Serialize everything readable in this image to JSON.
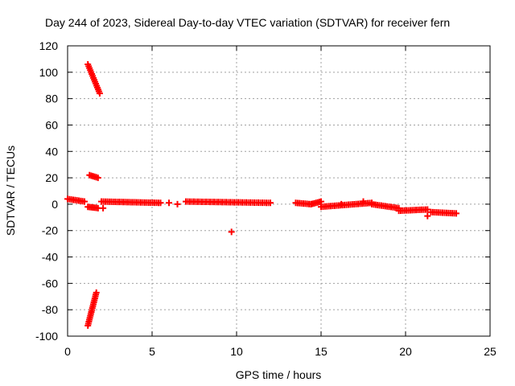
{
  "chart_data": {
    "type": "scatter",
    "title": "Day 244 of 2023, Sidereal Day-to-day VTEC variation (SDTVAR) for receiver fern",
    "xlabel": "GPS time / hours",
    "ylabel": "SDTVAR / TECUs",
    "xlim": [
      0,
      25
    ],
    "ylim": [
      -100,
      120
    ],
    "xticks": [
      0,
      5,
      10,
      15,
      20,
      25
    ],
    "yticks": [
      -100,
      -80,
      -60,
      -40,
      -20,
      0,
      20,
      40,
      60,
      80,
      100,
      120
    ],
    "grid": true,
    "marker": "plus",
    "series": [
      {
        "name": "SDTVAR",
        "color": "#ff0000",
        "segments": [
          {
            "x": [
              0.0,
              1.0
            ],
            "y": [
              4,
              2
            ]
          },
          {
            "x": [
              1.2,
              1.8
            ],
            "y": [
              -2,
              -3
            ]
          },
          {
            "x": [
              1.2,
              1.9
            ],
            "y": [
              106,
              84
            ]
          },
          {
            "x": [
              1.3,
              1.8
            ],
            "y": [
              22,
              20
            ]
          },
          {
            "x": [
              1.2,
              1.7
            ],
            "y": [
              -92,
              -67
            ]
          },
          {
            "x": [
              2.0,
              5.5
            ],
            "y": [
              2,
              1
            ]
          },
          {
            "x": [
              7.0,
              12.0
            ],
            "y": [
              2,
              1
            ]
          },
          {
            "x": [
              13.5,
              14.4
            ],
            "y": [
              1,
              0
            ]
          },
          {
            "x": [
              14.4,
              15.0
            ],
            "y": [
              0,
              2
            ]
          },
          {
            "x": [
              15.0,
              18.0
            ],
            "y": [
              -2,
              1
            ]
          },
          {
            "x": [
              18.0,
              19.6
            ],
            "y": [
              0,
              -3
            ]
          },
          {
            "x": [
              19.6,
              21.3
            ],
            "y": [
              -5,
              -4
            ]
          },
          {
            "x": [
              21.5,
              23.0
            ],
            "y": [
              -6,
              -7
            ]
          }
        ],
        "points": [
          {
            "x": 2.1,
            "y": -3
          },
          {
            "x": 6.0,
            "y": 1
          },
          {
            "x": 6.5,
            "y": 0
          },
          {
            "x": 9.7,
            "y": -21
          },
          {
            "x": 21.3,
            "y": -9
          },
          {
            "x": 16.2,
            "y": 0
          },
          {
            "x": 17.5,
            "y": 2
          }
        ]
      }
    ]
  }
}
